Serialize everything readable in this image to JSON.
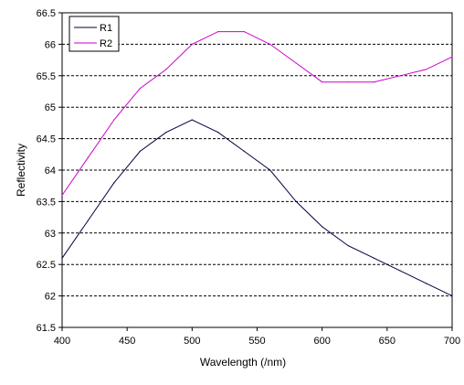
{
  "chart_data": {
    "type": "line",
    "title": "",
    "xlabel": "Wavelength (/nm)",
    "ylabel": "Reflectivity",
    "xlim": [
      400,
      700
    ],
    "ylim": [
      61.5,
      66.5
    ],
    "xticks": [
      400,
      450,
      500,
      550,
      600,
      650,
      700
    ],
    "xtick_labels": [
      "400",
      "450",
      "500",
      "550",
      "600",
      "650",
      "700"
    ],
    "yticks": [
      61.5,
      62,
      62.5,
      63,
      63.5,
      64,
      64.5,
      65,
      65.5,
      66,
      66.5
    ],
    "ytick_labels": [
      "61.5",
      "62",
      "62.5",
      "63",
      "63.5",
      "64",
      "64.5",
      "65",
      "65.5",
      "66",
      "66.5"
    ],
    "grid": "horizontal dashed",
    "legend_position": "top-left",
    "series": [
      {
        "name": "R1",
        "color": "#000040",
        "x": [
          400,
          420,
          440,
          460,
          480,
          500,
          520,
          540,
          560,
          580,
          600,
          620,
          640,
          660,
          680,
          700
        ],
        "y": [
          62.6,
          63.2,
          63.8,
          64.3,
          64.6,
          64.8,
          64.6,
          64.3,
          64.0,
          63.5,
          63.1,
          62.8,
          62.6,
          62.4,
          62.2,
          62.0
        ]
      },
      {
        "name": "R2",
        "color": "#cc00cc",
        "x": [
          400,
          420,
          440,
          460,
          480,
          500,
          520,
          540,
          560,
          580,
          600,
          620,
          640,
          660,
          680,
          700
        ],
        "y": [
          63.6,
          64.2,
          64.8,
          65.3,
          65.6,
          66.0,
          66.2,
          66.2,
          66.0,
          65.7,
          65.4,
          65.4,
          65.4,
          65.5,
          65.6,
          65.8
        ]
      }
    ]
  }
}
